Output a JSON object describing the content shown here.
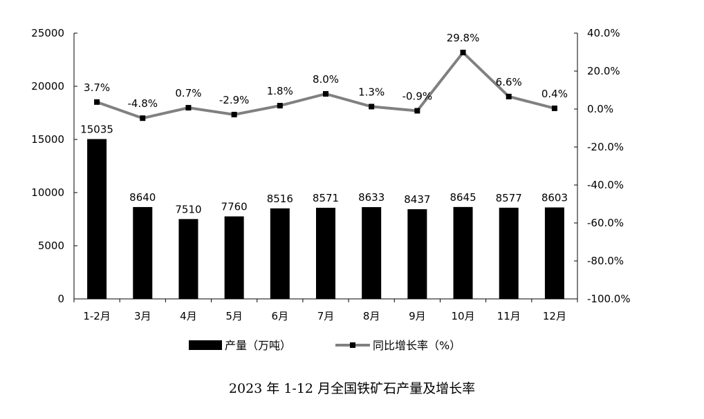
{
  "chart_data": {
    "type": "bar+line",
    "title": "2023 年 1-12 月全国铁矿石产量及增长率",
    "categories": [
      "1-2月",
      "3月",
      "4月",
      "5月",
      "6月",
      "7月",
      "8月",
      "9月",
      "10月",
      "11月",
      "12月"
    ],
    "series": [
      {
        "name": "产量（万吨）",
        "kind": "bar",
        "axis": "left",
        "color": "#000000",
        "values": [
          15035,
          8640,
          7510,
          7760,
          8516,
          8571,
          8633,
          8437,
          8645,
          8577,
          8603
        ],
        "labels": [
          "15035",
          "8640",
          "7510",
          "7760",
          "8516",
          "8571",
          "8633",
          "8437",
          "8645",
          "8577",
          "8603"
        ]
      },
      {
        "name": "同比增长率（%）",
        "kind": "line",
        "axis": "right",
        "color": "#808080",
        "marker_color": "#000000",
        "values": [
          3.7,
          -4.8,
          0.7,
          -2.9,
          1.8,
          8.0,
          1.3,
          -0.9,
          29.8,
          6.6,
          0.4
        ],
        "labels": [
          "3.7%",
          "-4.8%",
          "0.7%",
          "-2.9%",
          "1.8%",
          "8.0%",
          "1.3%",
          "-0.9%",
          "29.8%",
          "6.6%",
          "0.4%"
        ]
      }
    ],
    "y_left": {
      "ylim": [
        0,
        25000
      ],
      "ticks": [
        0,
        5000,
        10000,
        15000,
        20000,
        25000
      ],
      "tick_labels": [
        "0",
        "5000",
        "10000",
        "15000",
        "20000",
        "25000"
      ]
    },
    "y_right": {
      "ylim": [
        -100,
        40
      ],
      "ticks": [
        -100,
        -80,
        -60,
        -40,
        -20,
        0,
        20,
        40
      ],
      "tick_labels": [
        "-100.0%",
        "-80.0%",
        "-60.0%",
        "-40.0%",
        "-20.0%",
        "0.0%",
        "20.0%",
        "40.0%"
      ]
    },
    "grid": false,
    "legend_position": "bottom-center"
  }
}
